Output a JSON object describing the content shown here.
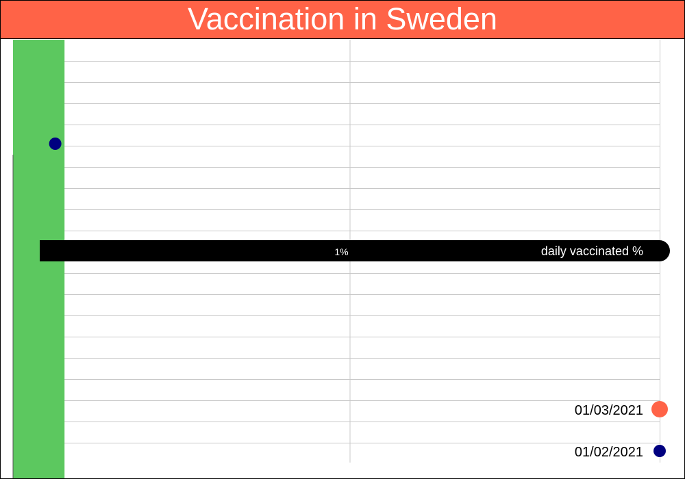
{
  "colors": {
    "title_background": "#FF6347",
    "vaccinated_bar": "#5CC85F",
    "axis_band": "#000000",
    "point_first": "#000080",
    "point_second": "#FF6347",
    "grid": "#C8C8C8"
  },
  "chart_data": {
    "type": "scatter",
    "title": "Vaccination in Sweden",
    "x_axis_label": "daily vaccinated %",
    "x_tick_labels": [
      "1%"
    ],
    "grid": true,
    "legend_position": "bottom-right",
    "series": [
      {
        "name": "01/03/2021",
        "color": "#FF6347",
        "values": []
      },
      {
        "name": "01/02/2021",
        "color": "#000080",
        "values": [
          0.05
        ]
      }
    ],
    "vaccinated_bar_value": 0.08,
    "x_range": [
      0,
      2
    ]
  }
}
